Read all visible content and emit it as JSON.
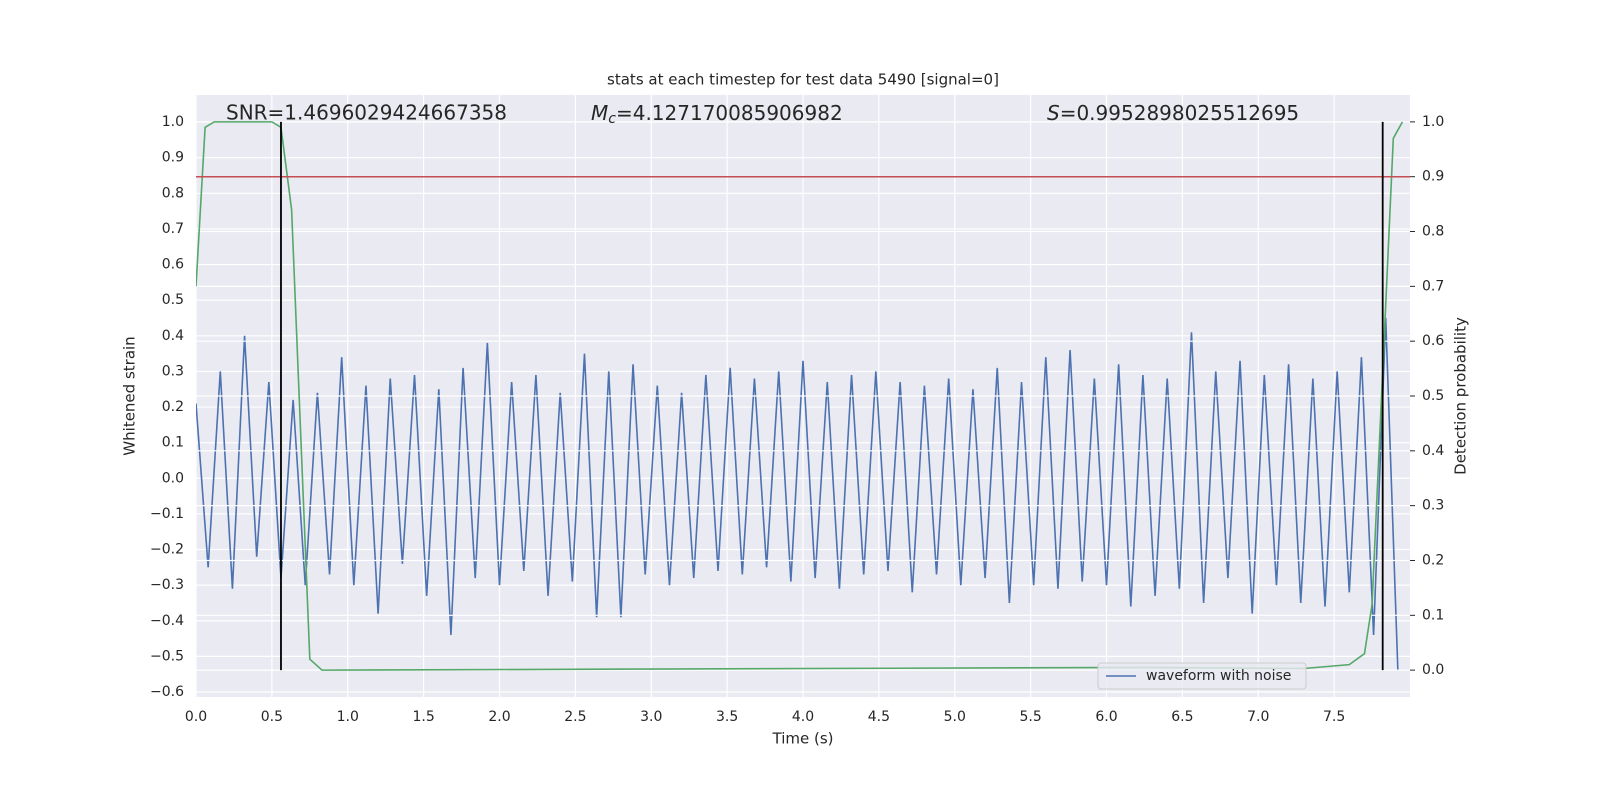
{
  "chart_data": {
    "type": "line",
    "title": "stats at each timestep for test data 5490 [signal=0]",
    "xlabel": "Time (s)",
    "ylabel": "Whitened strain",
    "y2label": "Detection probability",
    "annotations": [
      {
        "text": "SNR=1.4696029424667358"
      },
      {
        "symbol": "M",
        "subscript": "c",
        "text": "=4.127170085906982"
      },
      {
        "symbol": "S",
        "text": "=0.9952898025512695"
      }
    ],
    "xlim": [
      0,
      8
    ],
    "ylim": [
      -0.614,
      1.076
    ],
    "y2lim": [
      -0.049,
      1.049
    ],
    "xticks": [
      {
        "value": 0,
        "label": "0.0"
      },
      {
        "value": 0.5,
        "label": "0.5"
      },
      {
        "value": 1,
        "label": "1.0"
      },
      {
        "value": 1.5,
        "label": "1.5"
      },
      {
        "value": 2,
        "label": "2.0"
      },
      {
        "value": 2.5,
        "label": "2.5"
      },
      {
        "value": 3,
        "label": "3.0"
      },
      {
        "value": 3.5,
        "label": "3.5"
      },
      {
        "value": 4,
        "label": "4.0"
      },
      {
        "value": 4.5,
        "label": "4.5"
      },
      {
        "value": 5,
        "label": "5.0"
      },
      {
        "value": 5.5,
        "label": "5.5"
      },
      {
        "value": 6,
        "label": "6.0"
      },
      {
        "value": 6.5,
        "label": "6.5"
      },
      {
        "value": 7,
        "label": "7.0"
      },
      {
        "value": 7.5,
        "label": "7.5"
      }
    ],
    "yticks": [
      {
        "value": -0.6,
        "label": "−0.6"
      },
      {
        "value": -0.5,
        "label": "−0.5"
      },
      {
        "value": -0.4,
        "label": "−0.4"
      },
      {
        "value": -0.3,
        "label": "−0.3"
      },
      {
        "value": -0.2,
        "label": "−0.2"
      },
      {
        "value": -0.1,
        "label": "−0.1"
      },
      {
        "value": 0,
        "label": "0.0"
      },
      {
        "value": 0.1,
        "label": "0.1"
      },
      {
        "value": 0.2,
        "label": "0.2"
      },
      {
        "value": 0.3,
        "label": "0.3"
      },
      {
        "value": 0.4,
        "label": "0.4"
      },
      {
        "value": 0.5,
        "label": "0.5"
      },
      {
        "value": 0.6,
        "label": "0.6"
      },
      {
        "value": 0.7,
        "label": "0.7"
      },
      {
        "value": 0.8,
        "label": "0.8"
      },
      {
        "value": 0.9,
        "label": "0.9"
      },
      {
        "value": 1,
        "label": "1.0"
      }
    ],
    "y2ticks": [
      {
        "value": 0,
        "label": "0.0"
      },
      {
        "value": 0.1,
        "label": "0.1"
      },
      {
        "value": 0.2,
        "label": "0.2"
      },
      {
        "value": 0.3,
        "label": "0.3"
      },
      {
        "value": 0.4,
        "label": "0.4"
      },
      {
        "value": 0.5,
        "label": "0.5"
      },
      {
        "value": 0.6,
        "label": "0.6"
      },
      {
        "value": 0.7,
        "label": "0.7"
      },
      {
        "value": 0.8,
        "label": "0.8"
      },
      {
        "value": 0.9,
        "label": "0.9"
      },
      {
        "value": 1,
        "label": "1.0"
      }
    ],
    "grid": true,
    "legend": "lower right",
    "series": [
      {
        "name": "waveform with noise",
        "color": "#4c72b0",
        "x": [
          0,
          0.08,
          0.16,
          0.24,
          0.32,
          0.4,
          0.48,
          0.56,
          0.64,
          0.72,
          0.8,
          0.88,
          0.96,
          1.04,
          1.12,
          1.2,
          1.28,
          1.36,
          1.44,
          1.52,
          1.6,
          1.68,
          1.76,
          1.84,
          1.92,
          2,
          2.08,
          2.16,
          2.24,
          2.32,
          2.4,
          2.48,
          2.56,
          2.64,
          2.72,
          2.8,
          2.88,
          2.96,
          3.04,
          3.12,
          3.2,
          3.28,
          3.36,
          3.44,
          3.52,
          3.6,
          3.68,
          3.76,
          3.84,
          3.92,
          4,
          4.08,
          4.16,
          4.24,
          4.32,
          4.4,
          4.48,
          4.56,
          4.64,
          4.72,
          4.8,
          4.88,
          4.96,
          5.04,
          5.12,
          5.2,
          5.28,
          5.36,
          5.44,
          5.52,
          5.6,
          5.68,
          5.76,
          5.84,
          5.92,
          6,
          6.08,
          6.16,
          6.24,
          6.32,
          6.4,
          6.48,
          6.56,
          6.64,
          6.72,
          6.8,
          6.88,
          6.96,
          7.04,
          7.12,
          7.2,
          7.28,
          7.36,
          7.44,
          7.52,
          7.6,
          7.68,
          7.76,
          7.84,
          7.92
        ],
        "values": [
          0.21,
          -0.25,
          0.3,
          -0.31,
          0.4,
          -0.22,
          0.27,
          -0.28,
          0.22,
          -0.3,
          0.24,
          -0.27,
          0.34,
          -0.3,
          0.26,
          -0.38,
          0.28,
          -0.24,
          0.29,
          -0.33,
          0.25,
          -0.44,
          0.31,
          -0.28,
          0.38,
          -0.3,
          0.27,
          -0.26,
          0.29,
          -0.33,
          0.24,
          -0.29,
          0.35,
          -0.39,
          0.3,
          -0.39,
          0.32,
          -0.27,
          0.26,
          -0.3,
          0.24,
          -0.28,
          0.29,
          -0.26,
          0.31,
          -0.27,
          0.28,
          -0.25,
          0.3,
          -0.29,
          0.33,
          -0.28,
          0.27,
          -0.31,
          0.29,
          -0.27,
          0.3,
          -0.26,
          0.27,
          -0.32,
          0.26,
          -0.27,
          0.28,
          -0.3,
          0.25,
          -0.28,
          0.31,
          -0.35,
          0.27,
          -0.3,
          0.34,
          -0.31,
          0.36,
          -0.29,
          0.28,
          -0.3,
          0.32,
          -0.36,
          0.29,
          -0.33,
          0.28,
          -0.31,
          0.41,
          -0.35,
          0.3,
          -0.28,
          0.33,
          -0.38,
          0.29,
          -0.3,
          0.32,
          -0.35,
          0.28,
          -0.36,
          0.3,
          -0.32,
          0.34,
          -0.44,
          0.45,
          -0.54
        ]
      },
      {
        "color": "#55a868",
        "axis": "y2",
        "x": [
          0,
          0.06,
          0.12,
          0.5,
          0.56,
          0.63,
          0.75,
          0.83,
          3,
          6.25,
          7.3,
          7.6,
          7.7,
          7.75,
          7.89,
          7.95
        ],
        "values": [
          0.7,
          0.99,
          1.0,
          1.0,
          0.99,
          0.84,
          0.02,
          0.0,
          0.002,
          0.005,
          0.003,
          0.01,
          0.03,
          0.12,
          0.97,
          1.0
        ]
      }
    ],
    "hlines": [
      {
        "value": 0.9,
        "axis": "y2",
        "color": "#c44e52"
      }
    ],
    "vlines": [
      {
        "x": 0.56,
        "ymin": 0,
        "ymax": 1,
        "axis": "y2",
        "color": "#000000"
      },
      {
        "x": 7.82,
        "ymin": 0,
        "ymax": 1,
        "axis": "y2",
        "color": "#000000"
      }
    ]
  }
}
